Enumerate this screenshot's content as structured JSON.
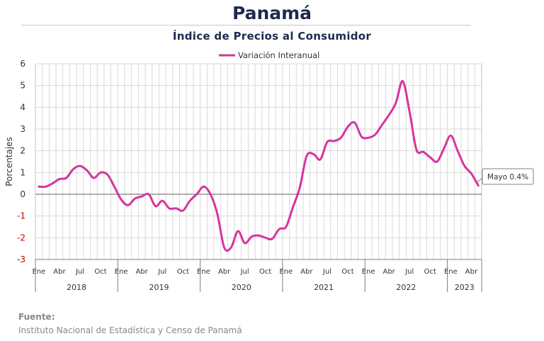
{
  "header": {
    "title": "Panamá",
    "subtitle": "Índice de Precios al Consumidor"
  },
  "footer": {
    "source_heading": "Fuente:",
    "source_text": "Instituto Nacional de Estadística y Censo de Panamá"
  },
  "colors": {
    "series": "#d6359b",
    "title": "#1f2a4d",
    "grid": "#d9d9d9",
    "zero_line": "#7f7f7f"
  },
  "chart_data": {
    "type": "line",
    "ylabel": "Porcentajes",
    "ylim": [
      -3,
      6
    ],
    "yticks": [
      6,
      5,
      4,
      3,
      2,
      1,
      0,
      -1,
      -2,
      -3
    ],
    "grid": true,
    "legend_position": "top-center",
    "month_labels": [
      "Ene",
      "Abr",
      "Jul",
      "Oct"
    ],
    "years": [
      "2018",
      "2019",
      "2020",
      "2021",
      "2022",
      "2023"
    ],
    "annotation": "Mayo 0.4%",
    "series": [
      {
        "name": "Variación Interanual",
        "values": [
          0.35,
          0.35,
          0.5,
          0.7,
          0.75,
          1.15,
          1.3,
          1.1,
          0.75,
          1.0,
          0.9,
          0.35,
          -0.25,
          -0.5,
          -0.2,
          -0.1,
          0.0,
          -0.55,
          -0.3,
          -0.65,
          -0.65,
          -0.75,
          -0.3,
          0.0,
          0.35,
          0.0,
          -0.9,
          -2.45,
          -2.45,
          -1.7,
          -2.25,
          -1.95,
          -1.9,
          -2.0,
          -2.05,
          -1.6,
          -1.5,
          -0.6,
          0.3,
          1.75,
          1.85,
          1.6,
          2.4,
          2.45,
          2.6,
          3.1,
          3.3,
          2.65,
          2.6,
          2.75,
          3.2,
          3.65,
          4.2,
          5.2,
          3.8,
          2.05,
          1.95,
          1.7,
          1.5,
          2.1,
          2.7,
          2.0,
          1.3,
          0.95,
          0.4
        ]
      }
    ]
  }
}
